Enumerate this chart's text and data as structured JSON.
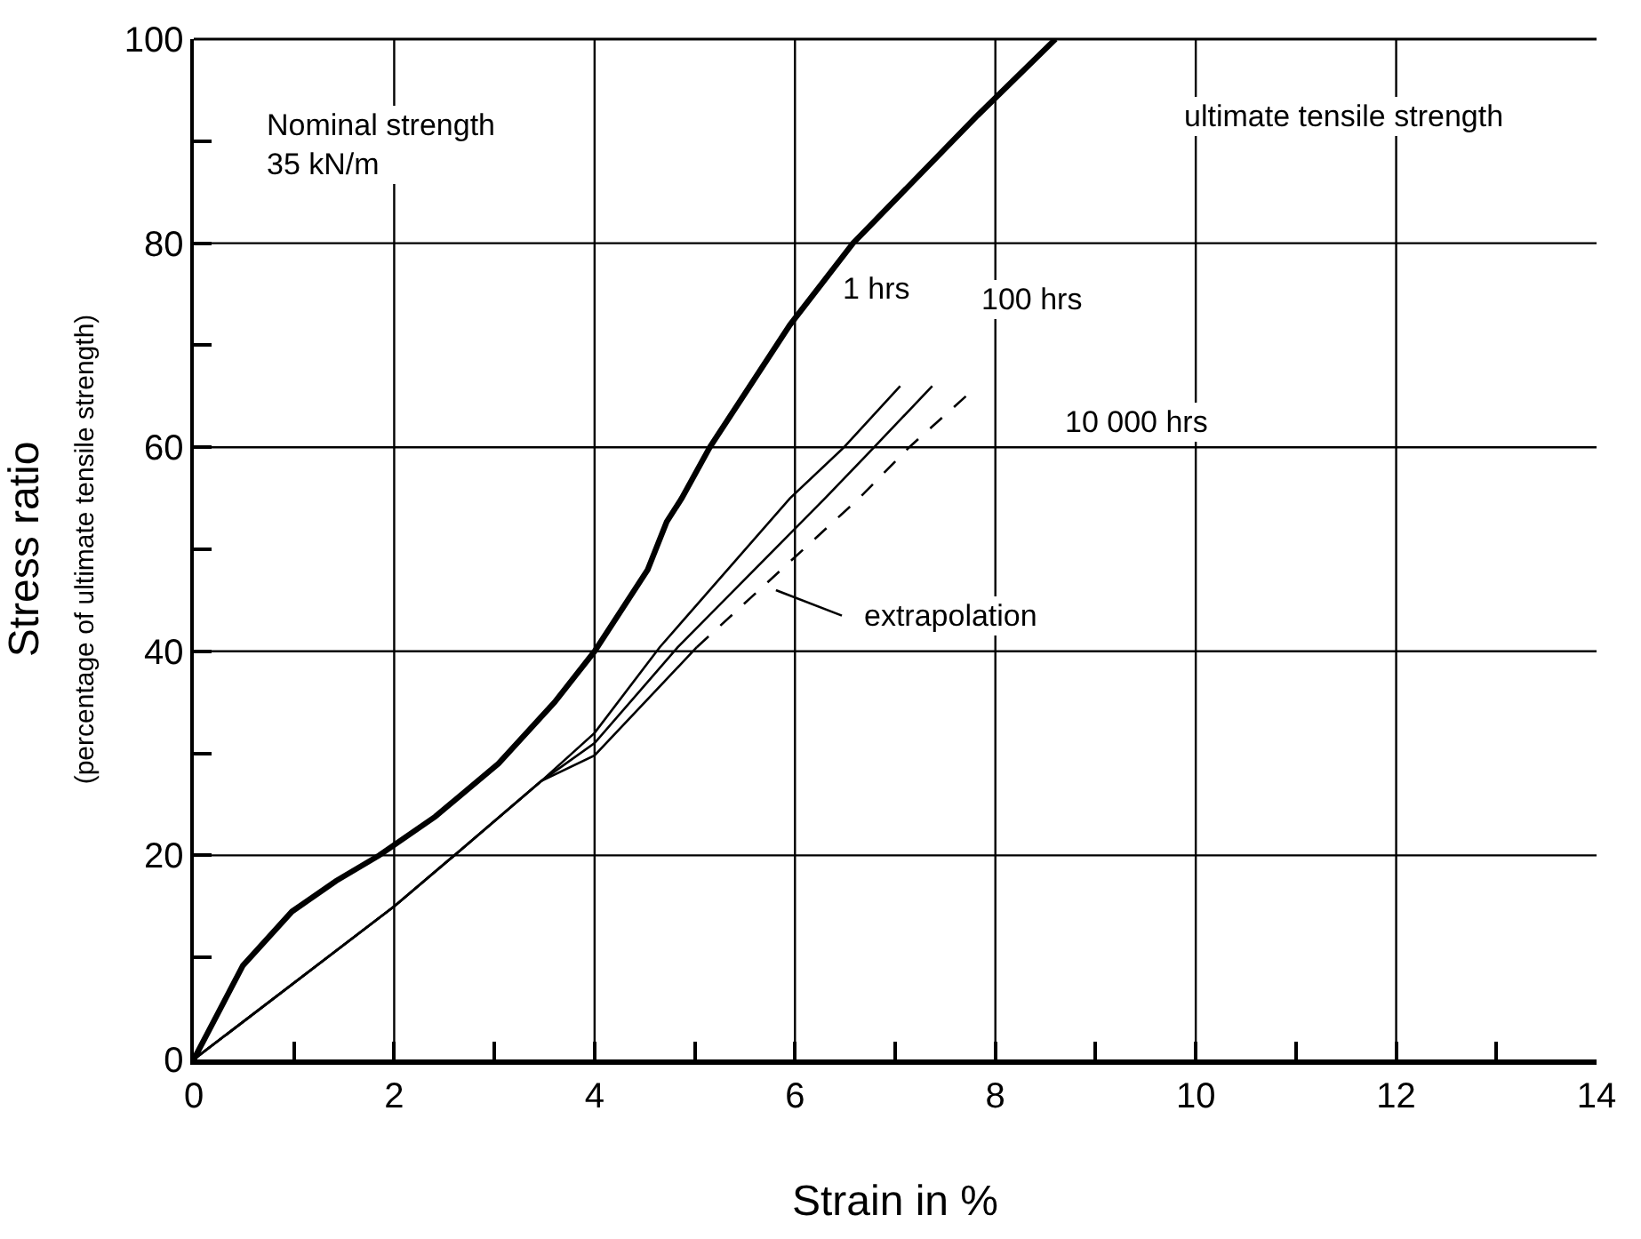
{
  "chart_data": {
    "type": "line",
    "xlabel": "Strain in %",
    "ylabel": "Stress ratio\n(percentage of ultimate tensile strength)",
    "xlim": [
      0,
      14
    ],
    "ylim": [
      0,
      100
    ],
    "xticks": [
      0,
      {
        "value": 1,
        "label": null
      },
      2,
      {
        "value": 3,
        "label": null
      },
      4,
      {
        "value": 5,
        "label": null
      },
      6,
      {
        "value": 7,
        "label": null
      },
      8,
      {
        "value": 9,
        "label": null
      },
      10,
      {
        "value": 11,
        "label": null
      },
      12,
      {
        "value": 13,
        "label": null
      },
      14
    ],
    "yticks": [
      0,
      {
        "value": 10,
        "label": null
      },
      20,
      {
        "value": 30,
        "label": null
      },
      40,
      {
        "value": 50,
        "label": null
      },
      60,
      {
        "value": 70,
        "label": null
      },
      80,
      {
        "value": 90,
        "label": null
      },
      100
    ],
    "grid": true,
    "marker": "none",
    "series": [
      {
        "color": "#000000",
        "line_style": "solid",
        "x": [
          0,
          0.49,
          0.98,
          1.42,
          1.85,
          2.41,
          3.04,
          3.6,
          4.0,
          4.53,
          4.72,
          4.87,
          5.15,
          5.95,
          6.58,
          7.82,
          8.6
        ],
        "values": [
          0,
          9.2,
          14.5,
          17.5,
          20,
          23.8,
          29,
          35,
          40,
          48,
          52.7,
          55,
          60,
          72,
          80,
          92.5,
          100
        ]
      },
      {
        "color": "#000000",
        "line_style": "solid",
        "x": [
          0,
          2.0,
          2.6,
          3.47,
          4.0,
          4.65,
          5.95,
          6.49,
          7.05
        ],
        "values": [
          0,
          15,
          20,
          27.3,
          32,
          40.4,
          55,
          60,
          66
        ]
      },
      {
        "color": "#000000",
        "line_style": "solid",
        "x": [
          0,
          2.0,
          2.6,
          3.47,
          4.0,
          4.83,
          6.3,
          6.79,
          7.37
        ],
        "values": [
          0,
          15,
          20,
          27.3,
          31,
          40.4,
          55,
          60,
          66
        ]
      },
      {
        "color": "#000000",
        "line_style": "solid",
        "x": [
          0,
          2.0,
          2.6,
          3.47,
          4.0,
          5.02
        ],
        "values": [
          0,
          15,
          20,
          27.3,
          29.8,
          40.4
        ]
      },
      {
        "color": "#000000",
        "line_style": "dashed",
        "x": [
          5.02,
          6.64,
          7.14,
          7.74
        ],
        "values": [
          40.4,
          55,
          60,
          65.3
        ]
      }
    ],
    "annotations": [
      "Nominal strength\n35 kN/m",
      "ultimate tensile strength",
      "1 hrs",
      "100 hrs",
      "10 000 hrs",
      "extrapolation"
    ]
  }
}
